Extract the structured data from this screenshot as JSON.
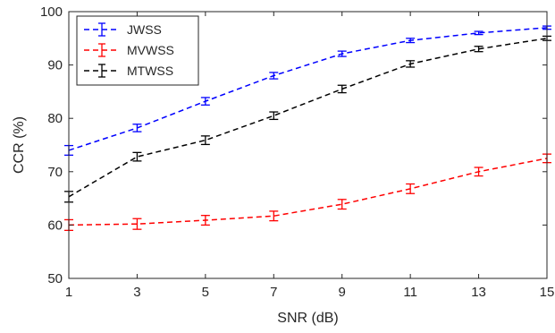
{
  "chart_data": {
    "type": "line",
    "title": "",
    "xlabel": "SNR (dB)",
    "ylabel": "CCR (%)",
    "xlim": [
      1,
      15
    ],
    "ylim": [
      50,
      100
    ],
    "xticks": [
      1,
      3,
      5,
      7,
      9,
      11,
      13,
      15
    ],
    "yticks": [
      50,
      60,
      70,
      80,
      90,
      100
    ],
    "grid": false,
    "legend_position": "top-left",
    "x": [
      1,
      3,
      5,
      7,
      9,
      11,
      13,
      15
    ],
    "series": [
      {
        "name": "JWSS",
        "color": "#0000ff",
        "style": "dashed",
        "values": [
          74.0,
          78.2,
          83.2,
          88.0,
          92.1,
          94.6,
          96.0,
          97.0
        ],
        "errors": [
          0.9,
          0.7,
          0.7,
          0.6,
          0.5,
          0.4,
          0.3,
          0.3
        ]
      },
      {
        "name": "MVWSS",
        "color": "#ff0000",
        "style": "dashed",
        "values": [
          60.0,
          60.2,
          60.9,
          61.7,
          63.9,
          66.8,
          70.0,
          72.5
        ],
        "errors": [
          1.0,
          1.0,
          0.9,
          0.9,
          0.9,
          0.9,
          0.8,
          0.8
        ]
      },
      {
        "name": "MTWSS",
        "color": "#000000",
        "style": "dashed",
        "values": [
          65.3,
          72.8,
          75.9,
          80.5,
          85.5,
          90.2,
          93.0,
          95.0
        ],
        "errors": [
          1.0,
          0.8,
          0.8,
          0.7,
          0.7,
          0.6,
          0.5,
          0.4
        ]
      }
    ]
  }
}
